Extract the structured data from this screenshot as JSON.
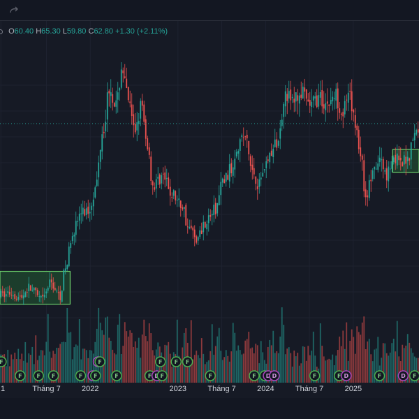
{
  "toolbar": {
    "icons": [
      "redo-icon"
    ]
  },
  "legend": {
    "open_key": "O",
    "open": "60.40",
    "high_key": "H",
    "high": "65.30",
    "low_key": "L",
    "low": "59.80",
    "close_key": "C",
    "close": "62.80",
    "change": "+1.30 (+2.11%)"
  },
  "colors": {
    "up": "#26a69a",
    "down": "#ef5350",
    "background": "#161a25",
    "box_fill": "#1f4a2f",
    "box_stroke": "#6ccf6c"
  },
  "x_axis": {
    "labels": [
      {
        "text": "1",
        "t": 2020.98
      },
      {
        "text": "Tháng 7",
        "t": 2021.5
      },
      {
        "text": "2022",
        "t": 2022.0
      },
      {
        "text": "2023",
        "t": 2023.0
      },
      {
        "text": "Tháng 7",
        "t": 2023.5
      },
      {
        "text": "2024",
        "t": 2024.0
      },
      {
        "text": "Tháng 7",
        "t": 2024.5
      },
      {
        "text": "2025",
        "t": 2025.0
      }
    ]
  },
  "chart_data": {
    "type": "candlestick",
    "x_range": [
      2020.97,
      2025.75
    ],
    "price_keypoints": [
      [
        2020.97,
        22.0
      ],
      [
        2021.1,
        22.5
      ],
      [
        2021.2,
        21.5
      ],
      [
        2021.3,
        23.5
      ],
      [
        2021.45,
        21.0
      ],
      [
        2021.55,
        24.5
      ],
      [
        2021.65,
        21.8
      ],
      [
        2021.72,
        27.5
      ],
      [
        2021.8,
        35.0
      ],
      [
        2021.9,
        38.5
      ],
      [
        2021.98,
        39.0
      ],
      [
        2022.05,
        43.0
      ],
      [
        2022.15,
        56.0
      ],
      [
        2022.22,
        64.0
      ],
      [
        2022.3,
        60.0
      ],
      [
        2022.36,
        68.0
      ],
      [
        2022.42,
        62.0
      ],
      [
        2022.5,
        55.0
      ],
      [
        2022.58,
        60.0
      ],
      [
        2022.64,
        53.0
      ],
      [
        2022.72,
        44.0
      ],
      [
        2022.82,
        46.0
      ],
      [
        2022.92,
        42.5
      ],
      [
        2023.05,
        40.0
      ],
      [
        2023.12,
        35.5
      ],
      [
        2023.22,
        33.5
      ],
      [
        2023.32,
        37.0
      ],
      [
        2023.42,
        39.0
      ],
      [
        2023.52,
        45.0
      ],
      [
        2023.6,
        47.0
      ],
      [
        2023.68,
        52.5
      ],
      [
        2023.76,
        54.0
      ],
      [
        2023.85,
        47.0
      ],
      [
        2023.92,
        44.5
      ],
      [
        2024.0,
        48.5
      ],
      [
        2024.08,
        51.0
      ],
      [
        2024.15,
        53.5
      ],
      [
        2024.22,
        63.0
      ],
      [
        2024.3,
        61.0
      ],
      [
        2024.4,
        62.5
      ],
      [
        2024.5,
        60.0
      ],
      [
        2024.6,
        61.5
      ],
      [
        2024.7,
        60.5
      ],
      [
        2024.8,
        62.0
      ],
      [
        2024.88,
        59.0
      ],
      [
        2024.95,
        61.5
      ],
      [
        2025.02,
        57.0
      ],
      [
        2025.08,
        51.0
      ],
      [
        2025.14,
        42.0
      ],
      [
        2025.22,
        46.0
      ],
      [
        2025.3,
        49.0
      ],
      [
        2025.38,
        46.5
      ],
      [
        2025.46,
        50.0
      ],
      [
        2025.55,
        48.0
      ],
      [
        2025.62,
        50.0
      ],
      [
        2025.7,
        54.0
      ],
      [
        2025.75,
        56.0
      ]
    ],
    "current_price": 56.5,
    "range_boxes": [
      {
        "t_start": 2020.97,
        "t_end": 2021.77,
        "low": 20.2,
        "high": 26.8
      },
      {
        "t_start": 2025.45,
        "t_end": 2025.75,
        "low": 46.7,
        "high": 51.3
      }
    ],
    "events": [
      {
        "t": 2020.985,
        "kind": "F",
        "lane": 1
      },
      {
        "t": 2021.2,
        "kind": "F",
        "lane": 2
      },
      {
        "t": 2021.41,
        "kind": "F",
        "lane": 2
      },
      {
        "t": 2021.58,
        "kind": "F",
        "lane": 2
      },
      {
        "t": 2021.89,
        "kind": "F",
        "lane": 2
      },
      {
        "t": 2022.03,
        "kind": "D",
        "lane": 2
      },
      {
        "t": 2022.09,
        "kind": "D",
        "lane": 1
      },
      {
        "t": 2022.06,
        "kind": "F",
        "lane": 2
      },
      {
        "t": 2022.11,
        "kind": "F",
        "lane": 1
      },
      {
        "t": 2022.3,
        "kind": "F",
        "lane": 2
      },
      {
        "t": 2022.68,
        "kind": "F",
        "lane": 2
      },
      {
        "t": 2022.8,
        "kind": "F",
        "lane": 1
      },
      {
        "t": 2022.76,
        "kind": "D",
        "lane": 2
      },
      {
        "t": 2022.82,
        "kind": "F",
        "lane": 2
      },
      {
        "t": 2022.98,
        "kind": "F",
        "lane": 1
      },
      {
        "t": 2023.11,
        "kind": "F",
        "lane": 1
      },
      {
        "t": 2023.37,
        "kind": "F",
        "lane": 2
      },
      {
        "t": 2023.87,
        "kind": "F",
        "lane": 2
      },
      {
        "t": 2023.99,
        "kind": "F",
        "lane": 2
      },
      {
        "t": 2024.03,
        "kind": "D",
        "lane": 2
      },
      {
        "t": 2024.1,
        "kind": "D",
        "lane": 2
      },
      {
        "t": 2024.56,
        "kind": "F",
        "lane": 2
      },
      {
        "t": 2024.84,
        "kind": "F",
        "lane": 2
      },
      {
        "t": 2024.92,
        "kind": "D",
        "lane": 2
      },
      {
        "t": 2025.3,
        "kind": "F",
        "lane": 2
      },
      {
        "t": 2025.57,
        "kind": "D",
        "lane": 2
      },
      {
        "t": 2025.7,
        "kind": "F",
        "lane": 2
      }
    ]
  }
}
